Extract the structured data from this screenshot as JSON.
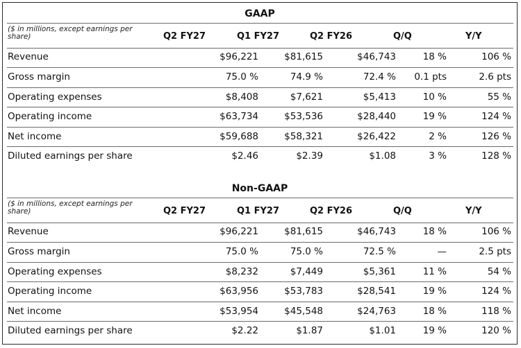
{
  "gaap": {
    "title": "GAAP",
    "header": {
      "note": "($ in millions, except earnings per share)",
      "columns": [
        "Q2 FY27",
        "Q1 FY27",
        "Q2 FY26",
        "Q/Q",
        "Y/Y"
      ]
    },
    "rows": [
      {
        "label": "Revenue",
        "values": [
          "$96,221",
          "$81,615",
          "$46,743",
          "18 %",
          "106 %"
        ]
      },
      {
        "label": "Gross margin",
        "values": [
          "75.0 %",
          "74.9 %",
          "72.4 %",
          "0.1 pts",
          "2.6 pts"
        ]
      },
      {
        "label": "Operating expenses",
        "values": [
          "$8,408",
          "$7,621",
          "$5,413",
          "10 %",
          "55 %"
        ]
      },
      {
        "label": "Operating income",
        "values": [
          "$63,734",
          "$53,536",
          "$28,440",
          "19 %",
          "124 %"
        ]
      },
      {
        "label": "Net income",
        "values": [
          "$59,688",
          "$58,321",
          "$26,422",
          "2 %",
          "126 %"
        ]
      },
      {
        "label": "Diluted earnings per share",
        "values": [
          "$2.46",
          "$2.39",
          "$1.08",
          "3 %",
          "128 %"
        ]
      }
    ]
  },
  "non_gaap": {
    "title": "Non-GAAP",
    "header": {
      "note": "($ in millions, except earnings per share)",
      "columns": [
        "Q2 FY27",
        "Q1 FY27",
        "Q2 FY26",
        "Q/Q",
        "Y/Y"
      ]
    },
    "rows": [
      {
        "label": "Revenue",
        "values": [
          "$96,221",
          "$81,615",
          "$46,743",
          "18 %",
          "106 %"
        ]
      },
      {
        "label": "Gross margin",
        "values": [
          "75.0 %",
          "75.0 %",
          "72.5 %",
          "—",
          "2.5 pts"
        ]
      },
      {
        "label": "Operating expenses",
        "values": [
          "$8,232",
          "$7,449",
          "$5,361",
          "11 %",
          "54 %"
        ]
      },
      {
        "label": "Operating income",
        "values": [
          "$63,956",
          "$53,783",
          "$28,541",
          "19 %",
          "124 %"
        ]
      },
      {
        "label": "Net income",
        "values": [
          "$53,954",
          "$45,548",
          "$24,763",
          "18 %",
          "118 %"
        ]
      },
      {
        "label": "Diluted earnings per share",
        "values": [
          "$2.22",
          "$1.87",
          "$1.01",
          "19 %",
          "120 %"
        ]
      }
    ]
  }
}
